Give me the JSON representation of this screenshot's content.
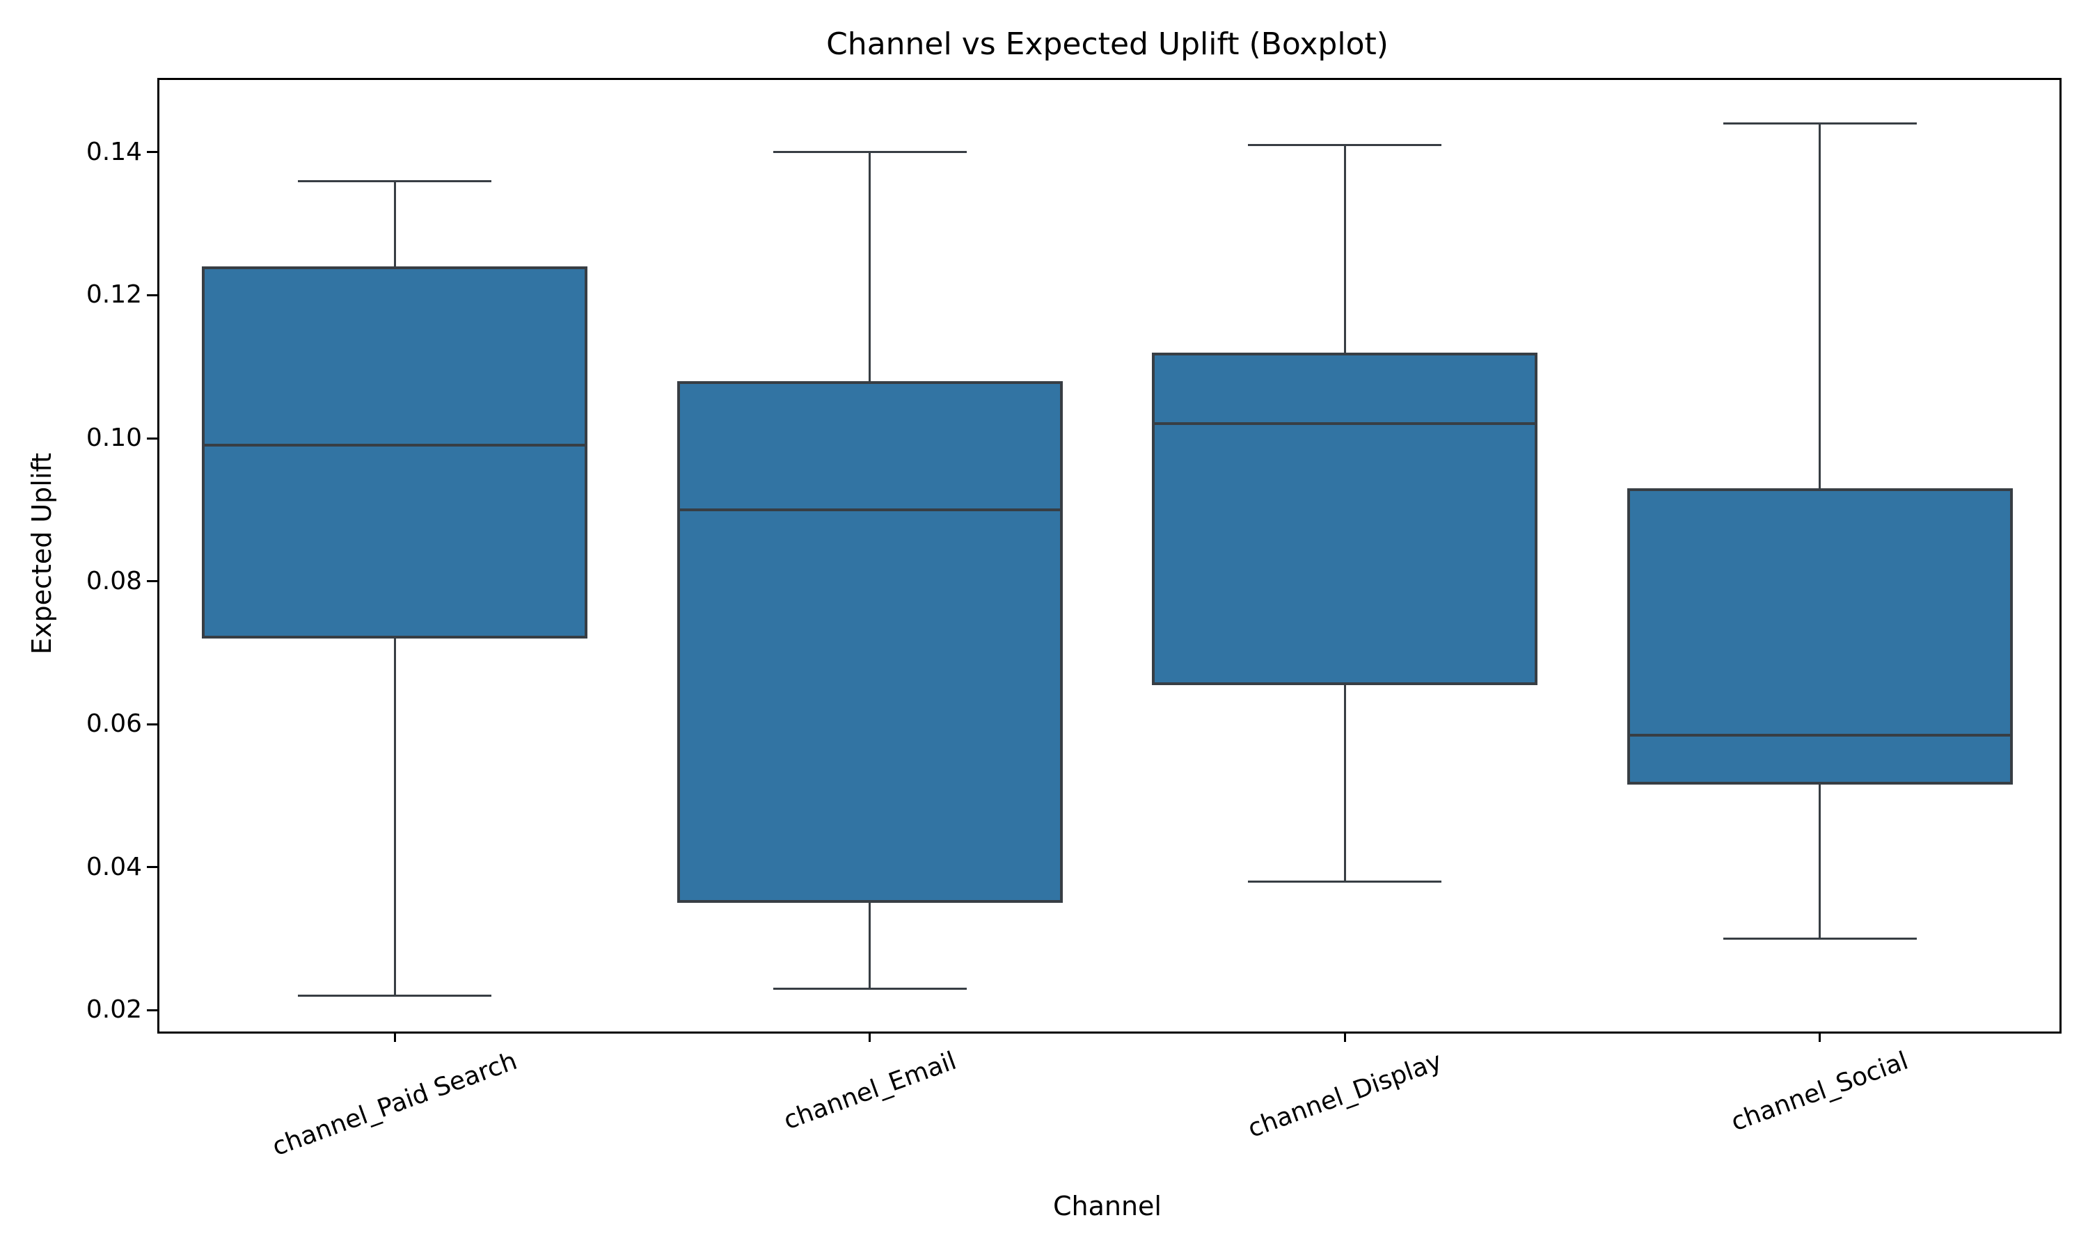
{
  "chart_data": {
    "type": "boxplot",
    "title": "Channel vs Expected Uplift (Boxplot)",
    "xlabel": "Channel",
    "ylabel": "Expected Uplift",
    "categories": [
      "channel_Paid Search",
      "channel_Email",
      "channel_Display",
      "channel_Social"
    ],
    "boxes": [
      {
        "category": "channel_Paid Search",
        "whisker_low": 0.022,
        "q1": 0.072,
        "median": 0.099,
        "q3": 0.124,
        "whisker_high": 0.136
      },
      {
        "category": "channel_Email",
        "whisker_low": 0.023,
        "q1": 0.035,
        "median": 0.09,
        "q3": 0.108,
        "whisker_high": 0.14
      },
      {
        "category": "channel_Display",
        "whisker_low": 0.038,
        "q1": 0.0655,
        "median": 0.102,
        "q3": 0.112,
        "whisker_high": 0.141
      },
      {
        "category": "channel_Social",
        "whisker_low": 0.03,
        "q1": 0.0515,
        "median": 0.0585,
        "q3": 0.093,
        "whisker_high": 0.144
      }
    ],
    "ytick_labels": [
      "0.14",
      "0.12",
      "0.10",
      "0.08",
      "0.06",
      "0.04",
      "0.02"
    ],
    "ylim": [
      0.0173,
      0.1504
    ],
    "xtick_rotation_deg": 20,
    "grid": false,
    "legend": null,
    "box_fill_color": "#3274a3",
    "box_line_color": "#383e44",
    "axis_color": "#000000"
  }
}
